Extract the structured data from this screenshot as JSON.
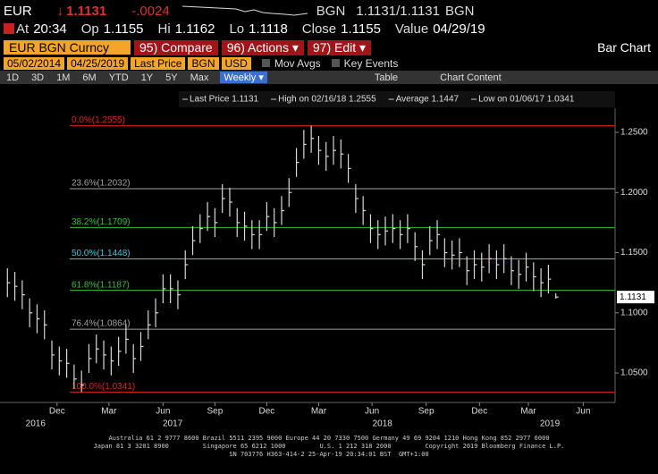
{
  "header": {
    "ticker": "EUR",
    "price": "1.1131",
    "change": "-.0024",
    "quote_left": "BGN",
    "quote": "1.1131/1.1131",
    "quote_right": "BGN",
    "stats": [
      {
        "label": "At",
        "value": "20:34"
      },
      {
        "label": "Op",
        "value": "1.1155"
      },
      {
        "label": "Hi",
        "value": "1.1162"
      },
      {
        "label": "Lo",
        "value": "1.1118"
      },
      {
        "label": "Close",
        "value": "1.1155"
      },
      {
        "label": "Value",
        "value": "04/29/19"
      }
    ]
  },
  "toolbar": {
    "security": "EUR BGN Curncy",
    "buttons": [
      "95) Compare",
      "96) Actions ▾",
      "97) Edit ▾"
    ],
    "chart_kind": "Bar Chart",
    "fields": [
      "05/02/2014",
      "04/25/2019",
      "Last Price",
      "BGN",
      "USD"
    ],
    "toggles": [
      "Mov Avgs",
      "Key Events"
    ],
    "periods": [
      "1D",
      "3D",
      "1M",
      "6M",
      "YTD",
      "1Y",
      "5Y",
      "Max"
    ],
    "frequency": "Weekly ▾",
    "table": "Table",
    "chart_content": "Chart Content"
  },
  "chart_data": {
    "type": "ohlc",
    "legend": [
      "Last Price 1.1131",
      "High on 02/16/18 1.2555",
      "Average 1.1447",
      "Low on 01/06/17 1.0341"
    ],
    "x": [
      0,
      1,
      2,
      3,
      4,
      5,
      6,
      7,
      8,
      9,
      10,
      11,
      12,
      13,
      14,
      15,
      16,
      17,
      18,
      19,
      20,
      21,
      22,
      23,
      24,
      25,
      26,
      27,
      28,
      29,
      30,
      31,
      32,
      33,
      34,
      35,
      36,
      37,
      38,
      39,
      40,
      41,
      42,
      43,
      44,
      45,
      46,
      47,
      48,
      49,
      50,
      51,
      52,
      53,
      54,
      55,
      56,
      57,
      58,
      59,
      60,
      61,
      62,
      63,
      64,
      65,
      66,
      67,
      68,
      69,
      70,
      71,
      72,
      73,
      74
    ],
    "high": [
      1.137,
      1.134,
      1.127,
      1.112,
      1.107,
      1.102,
      1.077,
      1.072,
      1.07,
      1.057,
      1.052,
      1.074,
      1.082,
      1.077,
      1.072,
      1.08,
      1.09,
      1.074,
      1.084,
      1.102,
      1.112,
      1.132,
      1.132,
      1.127,
      1.152,
      1.172,
      1.182,
      1.192,
      1.187,
      1.207,
      1.204,
      1.187,
      1.184,
      1.177,
      1.177,
      1.192,
      1.187,
      1.197,
      1.212,
      1.237,
      1.252,
      1.2555,
      1.247,
      1.242,
      1.247,
      1.244,
      1.232,
      1.207,
      1.197,
      1.182,
      1.177,
      1.18,
      1.182,
      1.177,
      1.182,
      1.167,
      1.152,
      1.172,
      1.177,
      1.162,
      1.16,
      1.162,
      1.147,
      1.152,
      1.15,
      1.157,
      1.152,
      1.157,
      1.147,
      1.144,
      1.15,
      1.142,
      1.137,
      1.14,
      1.1162
    ],
    "low": [
      1.113,
      1.11,
      1.103,
      1.088,
      1.083,
      1.078,
      1.053,
      1.048,
      1.046,
      1.037,
      1.0341,
      1.05,
      1.058,
      1.053,
      1.048,
      1.056,
      1.066,
      1.05,
      1.06,
      1.078,
      1.088,
      1.108,
      1.108,
      1.103,
      1.128,
      1.148,
      1.158,
      1.168,
      1.163,
      1.183,
      1.18,
      1.163,
      1.16,
      1.153,
      1.153,
      1.168,
      1.163,
      1.173,
      1.188,
      1.213,
      1.228,
      1.233,
      1.223,
      1.218,
      1.223,
      1.22,
      1.208,
      1.183,
      1.173,
      1.158,
      1.153,
      1.156,
      1.158,
      1.153,
      1.158,
      1.143,
      1.128,
      1.148,
      1.153,
      1.138,
      1.136,
      1.138,
      1.123,
      1.128,
      1.126,
      1.133,
      1.128,
      1.133,
      1.123,
      1.12,
      1.126,
      1.118,
      1.113,
      1.116,
      1.1118
    ],
    "close": [
      1.125,
      1.122,
      1.115,
      1.1,
      1.095,
      1.09,
      1.065,
      1.06,
      1.058,
      1.045,
      1.04,
      1.062,
      1.07,
      1.065,
      1.06,
      1.068,
      1.078,
      1.062,
      1.072,
      1.09,
      1.1,
      1.12,
      1.12,
      1.115,
      1.14,
      1.16,
      1.17,
      1.18,
      1.175,
      1.195,
      1.192,
      1.175,
      1.172,
      1.165,
      1.165,
      1.18,
      1.175,
      1.185,
      1.2,
      1.225,
      1.24,
      1.245,
      1.235,
      1.23,
      1.235,
      1.232,
      1.22,
      1.195,
      1.185,
      1.17,
      1.165,
      1.168,
      1.17,
      1.165,
      1.17,
      1.155,
      1.14,
      1.16,
      1.165,
      1.15,
      1.148,
      1.15,
      1.135,
      1.14,
      1.138,
      1.145,
      1.14,
      1.145,
      1.135,
      1.132,
      1.138,
      1.13,
      1.125,
      1.128,
      1.1131
    ],
    "color": "#d8d8d8",
    "xlim": [
      -1,
      82
    ],
    "xticks": [
      {
        "value": 6.7,
        "label": "Dec"
      },
      {
        "value": 13.7,
        "label": "Mar"
      },
      {
        "value": 21,
        "label": "Jun"
      },
      {
        "value": 28,
        "label": "Sep"
      },
      {
        "value": 35,
        "label": "Dec"
      },
      {
        "value": 42,
        "label": "Mar"
      },
      {
        "value": 49.2,
        "label": "Jun"
      },
      {
        "value": 56.5,
        "label": "Sep"
      },
      {
        "value": 63.7,
        "label": "Dec"
      },
      {
        "value": 70.3,
        "label": "Mar"
      },
      {
        "value": 77.7,
        "label": "Jun"
      }
    ],
    "year_ticks": [
      {
        "value": 3.8,
        "label": "2016"
      },
      {
        "value": 22.3,
        "label": "2017"
      },
      {
        "value": 50.6,
        "label": "2018"
      },
      {
        "value": 73.2,
        "label": "2019"
      }
    ],
    "ylim": [
      1.0255,
      1.2671
    ],
    "yticks": [
      {
        "value": 1.05,
        "label": "1.0500"
      },
      {
        "value": 1.1,
        "label": "1.1000"
      },
      {
        "value": 1.15,
        "label": "1.1500"
      },
      {
        "value": 1.2,
        "label": "1.2000"
      },
      {
        "value": 1.25,
        "label": "1.2500"
      }
    ],
    "last_price": {
      "value": 1.1131,
      "label": "1.1131"
    },
    "fib_levels": [
      {
        "value": 1.2555,
        "label": "0.0%(1.2555)",
        "color": "#e02020"
      },
      {
        "value": 1.2032,
        "label": "23.6%(1.2032)",
        "color": "#a0a0a0"
      },
      {
        "value": 1.1709,
        "label": "38.2%(1.1709)",
        "color": "#30c030"
      },
      {
        "value": 1.1448,
        "label": "50.0%(1.1448)",
        "color": "#30c8d8"
      },
      {
        "value": 1.1187,
        "label": "61.8%(1.1187)",
        "color": "#30c030"
      },
      {
        "value": 1.0864,
        "label": "76.4%(1.0864)",
        "color": "#a0a0a0"
      },
      {
        "value": 1.0341,
        "label": "100.0%(1.0341)",
        "color": "#e02020"
      }
    ]
  },
  "footer": {
    "lines": [
      "Australia 61 2 9777 8600 Brazil 5511 2395 9000 Europe 44 20 7330 7500 Germany 49 69 9204 1210 Hong Kong 852 2977 6000",
      "Japan 81 3 3201 8900         Singapore 65 6212 1000         U.S. 1 212 318 2000         Copyright 2019 Bloomberg Finance L.P.",
      "SN 703776 H363-414-2 25-Apr-19 20:34:01 BST  GMT+1:00"
    ]
  }
}
